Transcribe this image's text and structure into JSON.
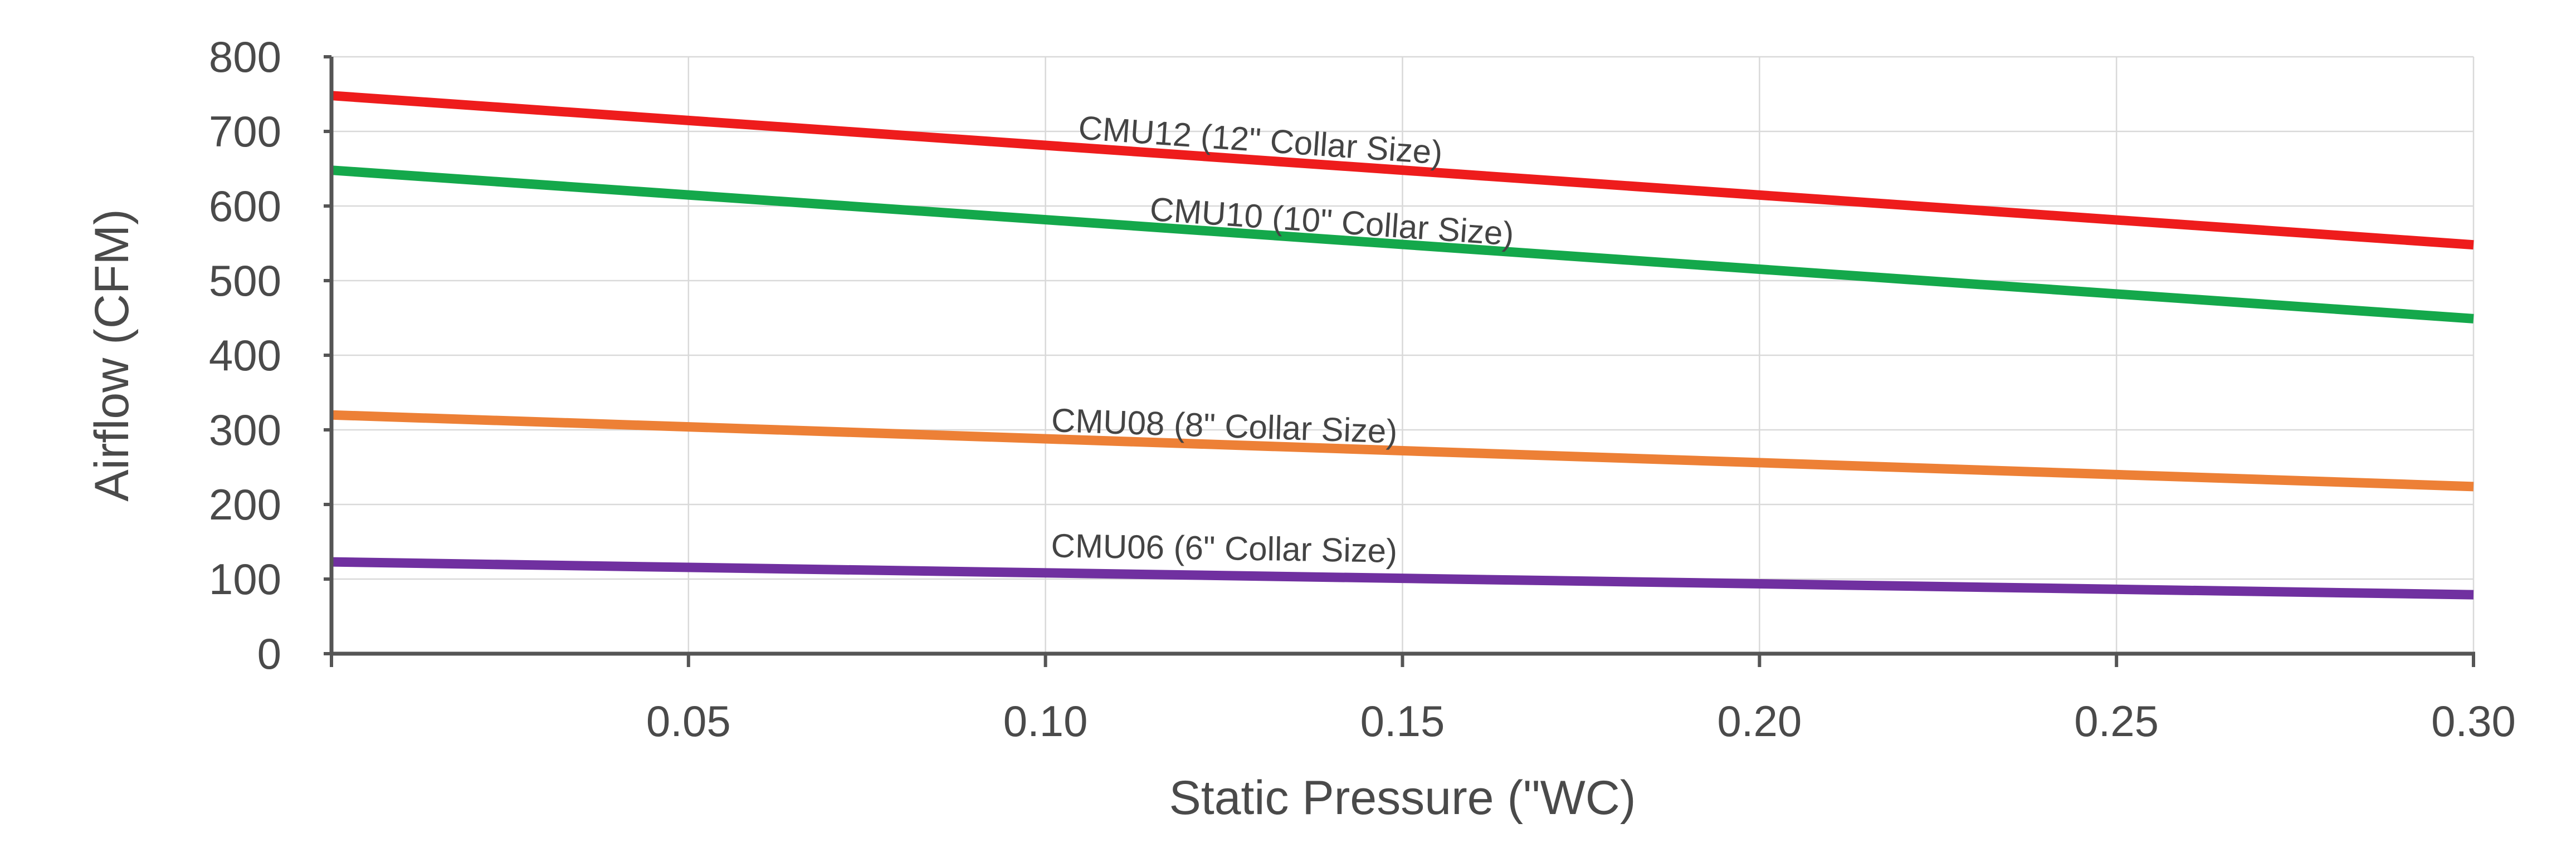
{
  "chart_data": {
    "type": "line",
    "title": "",
    "xlabel": "Static Pressure (\"WC)",
    "ylabel": "Airflow (CFM)",
    "xlim": [
      0,
      0.3
    ],
    "ylim": [
      0,
      800
    ],
    "x_ticks": [
      {
        "value": 0.05,
        "label": "0.05"
      },
      {
        "value": 0.1,
        "label": "0.10"
      },
      {
        "value": 0.15,
        "label": "0.15"
      },
      {
        "value": 0.2,
        "label": "0.20"
      },
      {
        "value": 0.25,
        "label": "0.25"
      },
      {
        "value": 0.3,
        "label": "0.30"
      }
    ],
    "y_ticks": [
      {
        "value": 0,
        "label": "0"
      },
      {
        "value": 100,
        "label": "100"
      },
      {
        "value": 200,
        "label": "200"
      },
      {
        "value": 300,
        "label": "300"
      },
      {
        "value": 400,
        "label": "400"
      },
      {
        "value": 500,
        "label": "500"
      },
      {
        "value": 600,
        "label": "600"
      },
      {
        "value": 700,
        "label": "700"
      },
      {
        "value": 800,
        "label": "800"
      }
    ],
    "grid": true,
    "legend": "none",
    "series": [
      {
        "name": "CMU12 (12\" Collar Size)",
        "color": "#ee1c1c",
        "x": [
          0,
          0.3
        ],
        "y": [
          748,
          548
        ],
        "label_x": 0.13,
        "label_y": 673
      },
      {
        "name": "CMU10 (10\" Collar Size)",
        "color": "#14a84b",
        "x": [
          0,
          0.3
        ],
        "y": [
          648,
          449
        ],
        "label_x": 0.14,
        "label_y": 564
      },
      {
        "name": "CMU08 (8\" Collar Size)",
        "color": "#ed8036",
        "x": [
          0,
          0.3
        ],
        "y": [
          320,
          224
        ],
        "label_x": 0.125,
        "label_y": 290
      },
      {
        "name": "CMU06 (6\" Collar Size)",
        "color": "#7030a0",
        "x": [
          0,
          0.3
        ],
        "y": [
          123,
          79
        ],
        "label_x": 0.125,
        "label_y": 126
      }
    ]
  }
}
